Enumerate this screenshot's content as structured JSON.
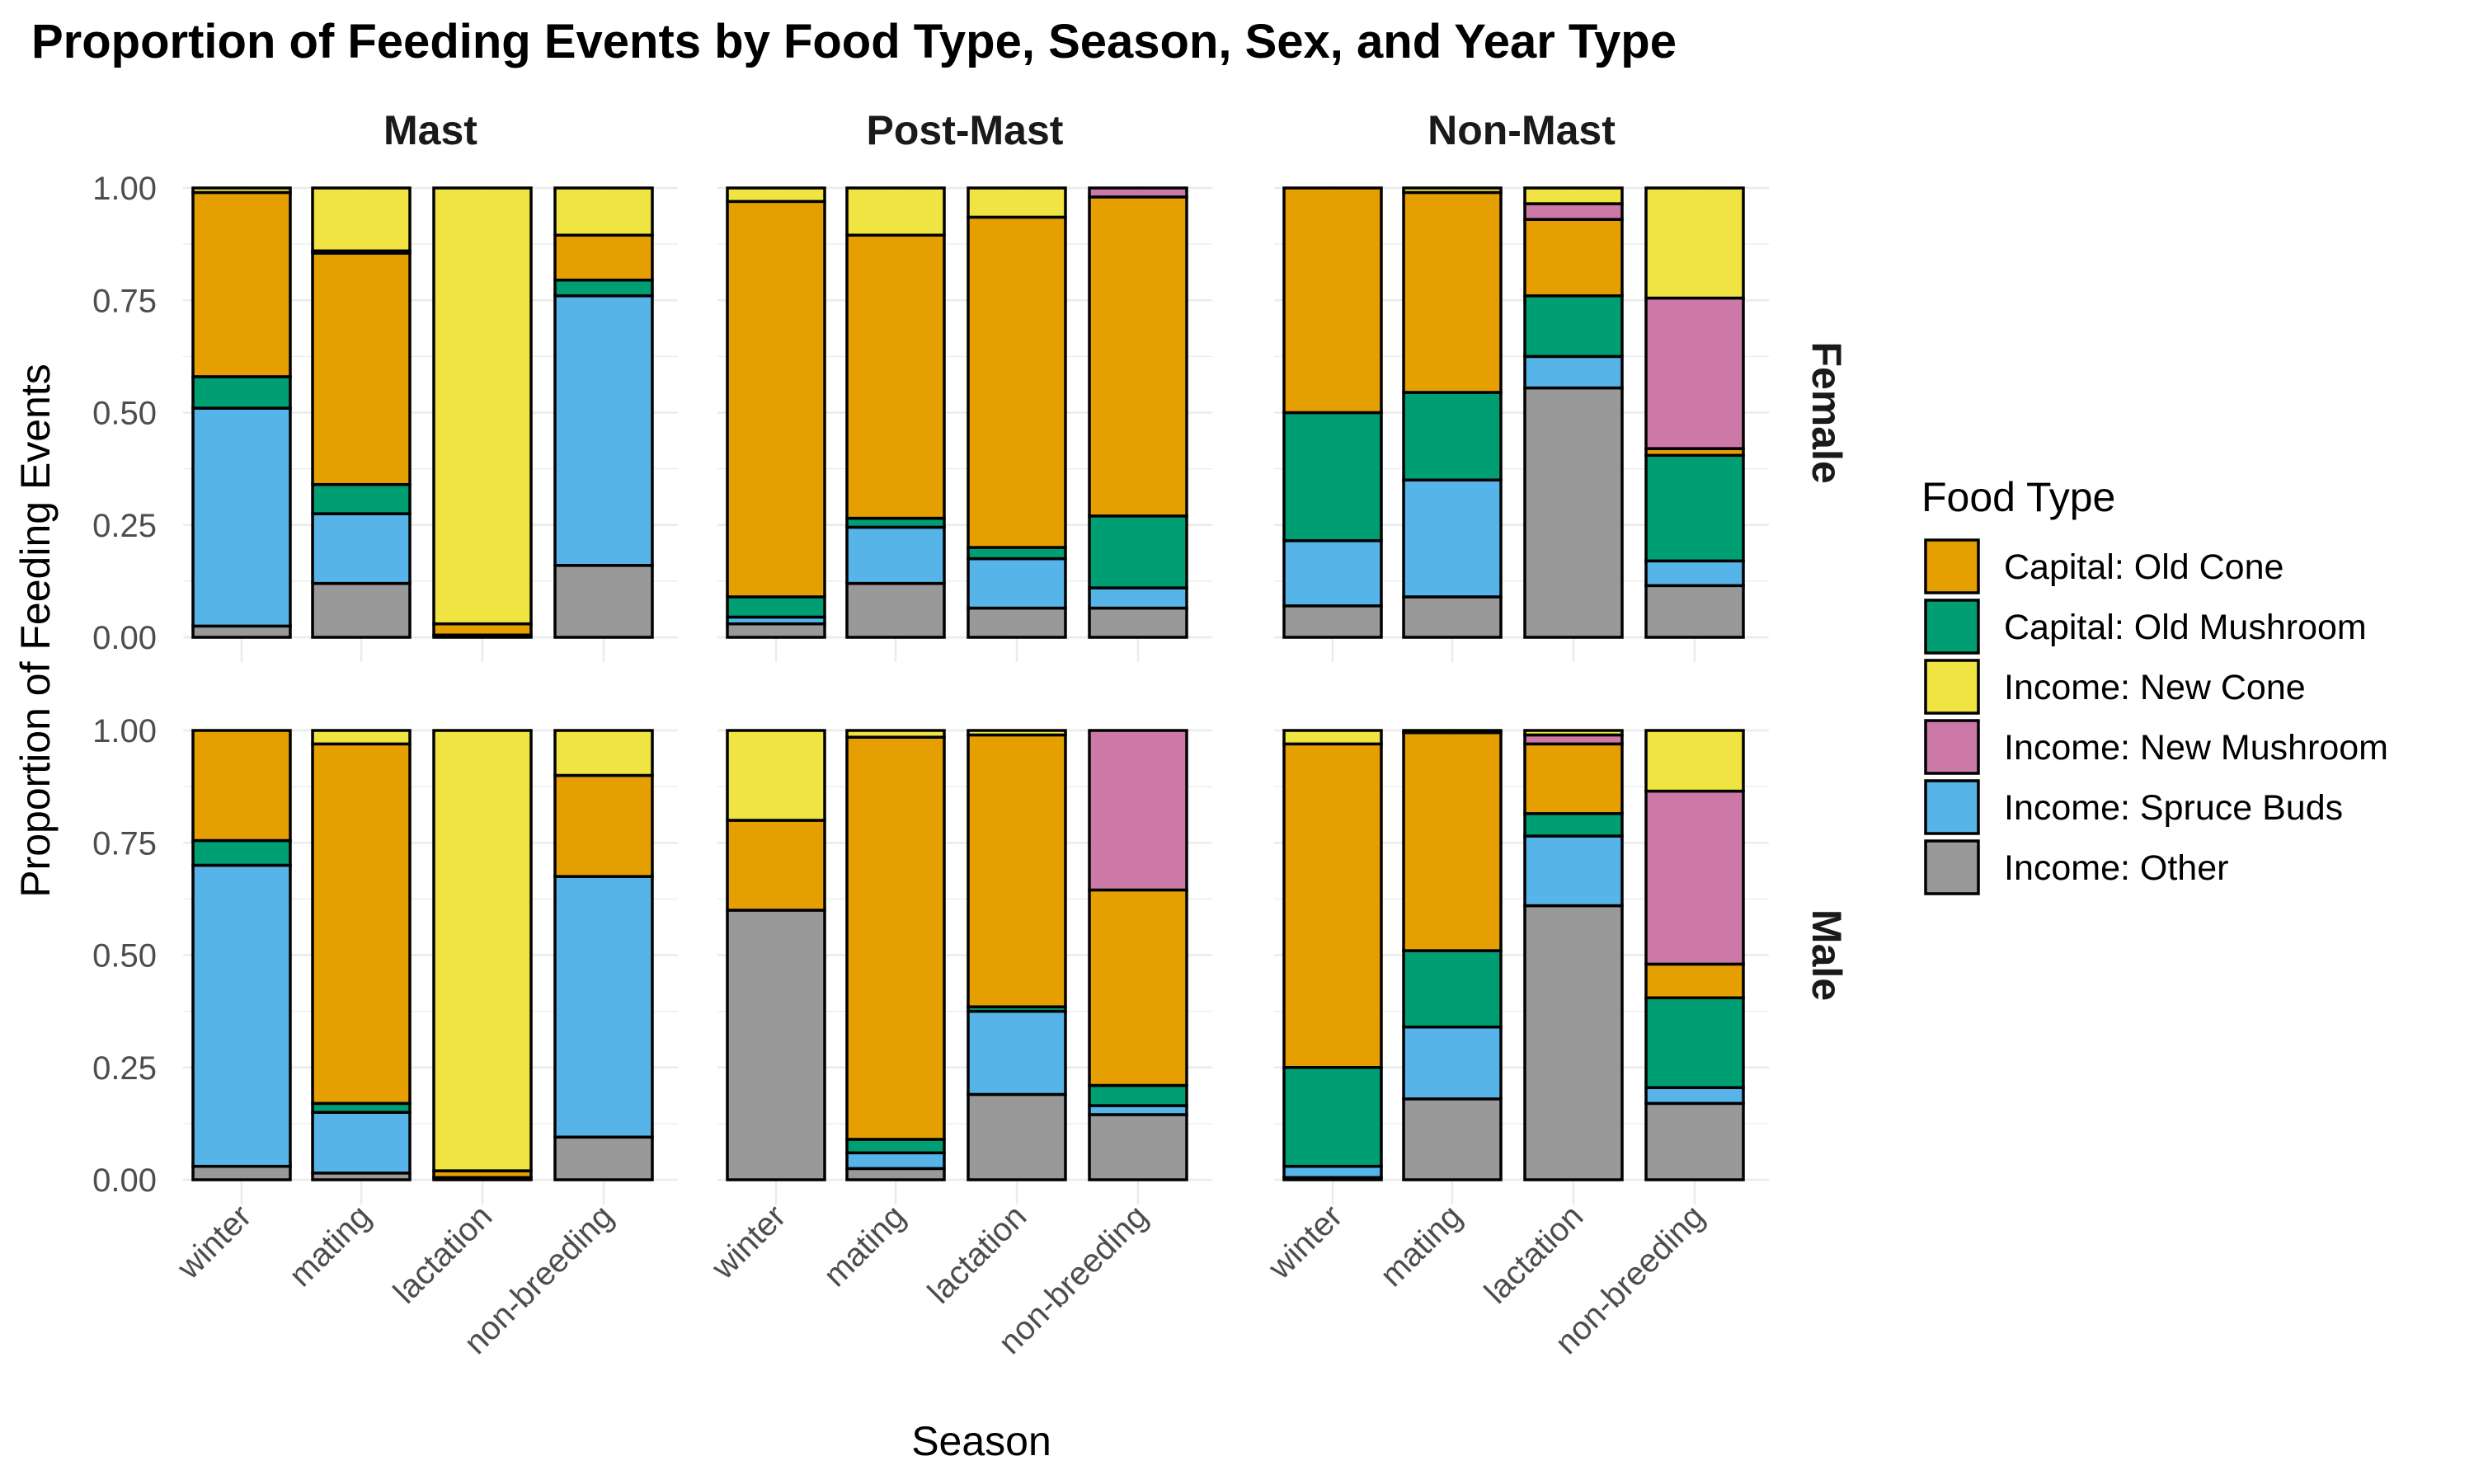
{
  "chart_data": {
    "type": "bar",
    "stacked": true,
    "title": "Proportion of Feeding Events by Food Type, Season, Sex, and Year Type",
    "xlabel": "Season",
    "ylabel": "Proportion of Feeding Events",
    "ylim": [
      0,
      1
    ],
    "yticks": [
      "0.00",
      "0.25",
      "0.50",
      "0.75",
      "1.00"
    ],
    "categories": [
      "winter",
      "mating",
      "lactation",
      "non-breeding"
    ],
    "facet_columns": [
      "Mast",
      "Post-Mast",
      "Non-Mast"
    ],
    "facet_rows": [
      "Female",
      "Male"
    ],
    "grid": true,
    "legend": {
      "title": "Food Type",
      "position": "right",
      "items": [
        {
          "name": "Capital: Old Cone",
          "color": "#E69F00"
        },
        {
          "name": "Capital: Old Mushroom",
          "color": "#009E73"
        },
        {
          "name": "Income: New Cone",
          "color": "#F0E442"
        },
        {
          "name": "Income: New Mushroom",
          "color": "#CC79A7"
        },
        {
          "name": "Income: Spruce Buds",
          "color": "#56B4E9"
        },
        {
          "name": "Income: Other",
          "color": "#999999"
        }
      ]
    },
    "stack_order_bottom_to_top": [
      "Income: Other",
      "Income: Spruce Buds",
      "Capital: Old Mushroom",
      "Capital: Old Cone",
      "Income: New Mushroom",
      "Income: New Cone"
    ],
    "panels": {
      "Female": {
        "Mast": {
          "winter": {
            "Income: Other": 0.025,
            "Income: Spruce Buds": 0.485,
            "Capital: Old Mushroom": 0.07,
            "Capital: Old Cone": 0.41,
            "Income: New Mushroom": 0.0,
            "Income: New Cone": 0.01
          },
          "mating": {
            "Income: Other": 0.12,
            "Income: Spruce Buds": 0.155,
            "Capital: Old Mushroom": 0.065,
            "Capital: Old Cone": 0.515,
            "Income: New Mushroom": 0.005,
            "Income: New Cone": 0.14
          },
          "lactation": {
            "Income: Other": 0.005,
            "Income: Spruce Buds": 0.0,
            "Capital: Old Mushroom": 0.0,
            "Capital: Old Cone": 0.025,
            "Income: New Mushroom": 0.0,
            "Income: New Cone": 0.97
          },
          "non-breeding": {
            "Income: Other": 0.16,
            "Income: Spruce Buds": 0.6,
            "Capital: Old Mushroom": 0.035,
            "Capital: Old Cone": 0.1,
            "Income: New Mushroom": 0.0,
            "Income: New Cone": 0.105
          }
        },
        "Post-Mast": {
          "winter": {
            "Income: Other": 0.03,
            "Income: Spruce Buds": 0.015,
            "Capital: Old Mushroom": 0.045,
            "Capital: Old Cone": 0.88,
            "Income: New Mushroom": 0.0,
            "Income: New Cone": 0.03
          },
          "mating": {
            "Income: Other": 0.12,
            "Income: Spruce Buds": 0.125,
            "Capital: Old Mushroom": 0.02,
            "Capital: Old Cone": 0.63,
            "Income: New Mushroom": 0.0,
            "Income: New Cone": 0.105
          },
          "lactation": {
            "Income: Other": 0.065,
            "Income: Spruce Buds": 0.11,
            "Capital: Old Mushroom": 0.025,
            "Capital: Old Cone": 0.735,
            "Income: New Mushroom": 0.0,
            "Income: New Cone": 0.065
          },
          "non-breeding": {
            "Income: Other": 0.065,
            "Income: Spruce Buds": 0.045,
            "Capital: Old Mushroom": 0.16,
            "Capital: Old Cone": 0.71,
            "Income: New Mushroom": 0.02,
            "Income: New Cone": 0.0
          }
        },
        "Non-Mast": {
          "winter": {
            "Income: Other": 0.07,
            "Income: Spruce Buds": 0.145,
            "Capital: Old Mushroom": 0.285,
            "Capital: Old Cone": 0.5,
            "Income: New Mushroom": 0.0,
            "Income: New Cone": 0.0
          },
          "mating": {
            "Income: Other": 0.09,
            "Income: Spruce Buds": 0.26,
            "Capital: Old Mushroom": 0.195,
            "Capital: Old Cone": 0.445,
            "Income: New Mushroom": 0.0,
            "Income: New Cone": 0.01
          },
          "lactation": {
            "Income: Other": 0.555,
            "Income: Spruce Buds": 0.07,
            "Capital: Old Mushroom": 0.135,
            "Capital: Old Cone": 0.17,
            "Income: New Mushroom": 0.035,
            "Income: New Cone": 0.035
          },
          "non-breeding": {
            "Income: Other": 0.115,
            "Income: Spruce Buds": 0.055,
            "Capital: Old Mushroom": 0.235,
            "Capital: Old Cone": 0.015,
            "Income: New Mushroom": 0.335,
            "Income: New Cone": 0.245
          }
        }
      },
      "Male": {
        "Mast": {
          "winter": {
            "Income: Other": 0.03,
            "Income: Spruce Buds": 0.67,
            "Capital: Old Mushroom": 0.055,
            "Capital: Old Cone": 0.245,
            "Income: New Mushroom": 0.0,
            "Income: New Cone": 0.0
          },
          "mating": {
            "Income: Other": 0.015,
            "Income: Spruce Buds": 0.135,
            "Capital: Old Mushroom": 0.02,
            "Capital: Old Cone": 0.8,
            "Income: New Mushroom": 0.0,
            "Income: New Cone": 0.03
          },
          "lactation": {
            "Income: Other": 0.005,
            "Income: Spruce Buds": 0.0,
            "Capital: Old Mushroom": 0.0,
            "Capital: Old Cone": 0.015,
            "Income: New Mushroom": 0.0,
            "Income: New Cone": 0.98
          },
          "non-breeding": {
            "Income: Other": 0.095,
            "Income: Spruce Buds": 0.58,
            "Capital: Old Mushroom": 0.0,
            "Capital: Old Cone": 0.225,
            "Income: New Mushroom": 0.0,
            "Income: New Cone": 0.1
          }
        },
        "Post-Mast": {
          "winter": {
            "Income: Other": 0.6,
            "Income: Spruce Buds": 0.0,
            "Capital: Old Mushroom": 0.0,
            "Capital: Old Cone": 0.2,
            "Income: New Mushroom": 0.0,
            "Income: New Cone": 0.2
          },
          "mating": {
            "Income: Other": 0.025,
            "Income: Spruce Buds": 0.035,
            "Capital: Old Mushroom": 0.03,
            "Capital: Old Cone": 0.895,
            "Income: New Mushroom": 0.0,
            "Income: New Cone": 0.015
          },
          "lactation": {
            "Income: Other": 0.19,
            "Income: Spruce Buds": 0.185,
            "Capital: Old Mushroom": 0.01,
            "Capital: Old Cone": 0.605,
            "Income: New Mushroom": 0.0,
            "Income: New Cone": 0.01
          },
          "non-breeding": {
            "Income: Other": 0.145,
            "Income: Spruce Buds": 0.02,
            "Capital: Old Mushroom": 0.045,
            "Capital: Old Cone": 0.435,
            "Income: New Mushroom": 0.355,
            "Income: New Cone": 0.0
          }
        },
        "Non-Mast": {
          "winter": {
            "Income: Other": 0.005,
            "Income: Spruce Buds": 0.025,
            "Capital: Old Mushroom": 0.22,
            "Capital: Old Cone": 0.72,
            "Income: New Mushroom": 0.0,
            "Income: New Cone": 0.03
          },
          "mating": {
            "Income: Other": 0.18,
            "Income: Spruce Buds": 0.16,
            "Capital: Old Mushroom": 0.17,
            "Capital: Old Cone": 0.485,
            "Income: New Mushroom": 0.0,
            "Income: New Cone": 0.005
          },
          "lactation": {
            "Income: Other": 0.61,
            "Income: Spruce Buds": 0.155,
            "Capital: Old Mushroom": 0.05,
            "Capital: Old Cone": 0.155,
            "Income: New Mushroom": 0.02,
            "Income: New Cone": 0.01
          },
          "non-breeding": {
            "Income: Other": 0.17,
            "Income: Spruce Buds": 0.035,
            "Capital: Old Mushroom": 0.2,
            "Capital: Old Cone": 0.075,
            "Income: New Mushroom": 0.385,
            "Income: New Cone": 0.135
          }
        }
      }
    }
  }
}
